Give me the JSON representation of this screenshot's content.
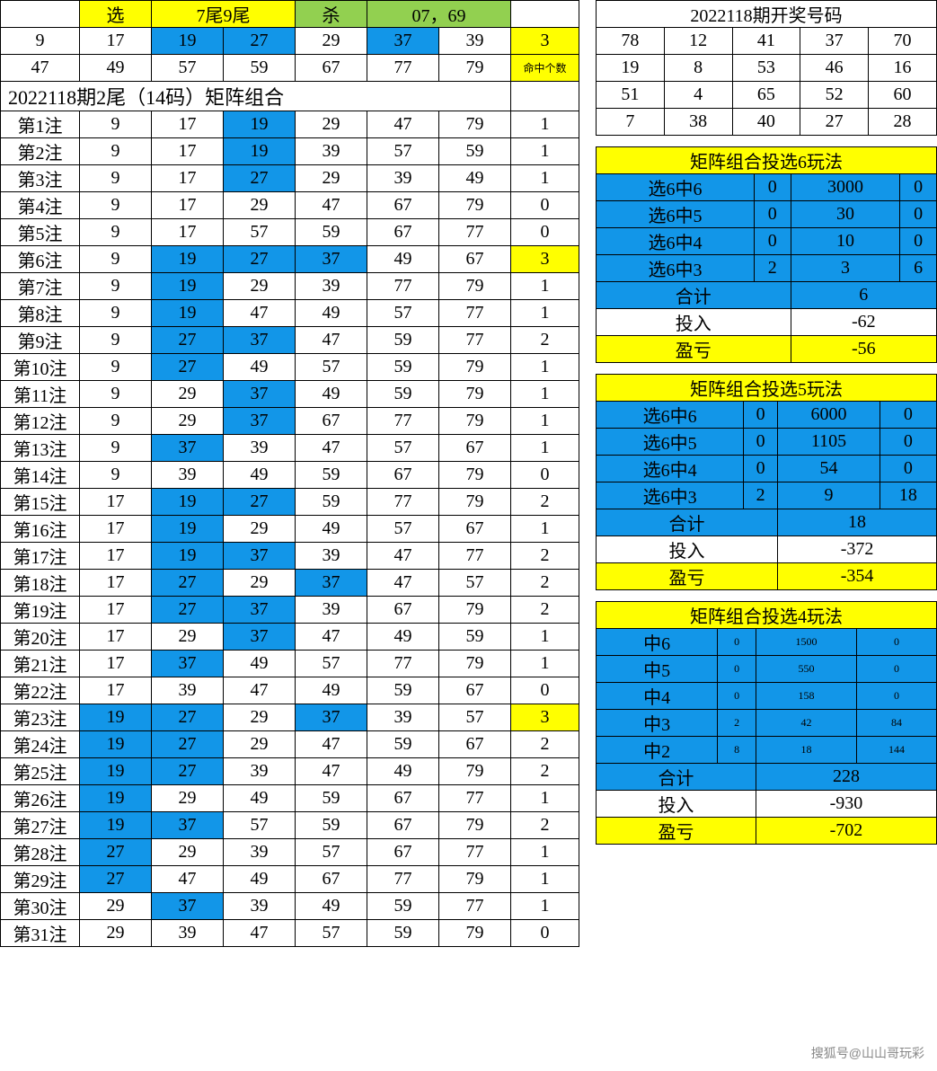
{
  "colors": {
    "yellow": "#ffff00",
    "blue": "#1296e8",
    "green": "#92d050",
    "white": "#ffffff",
    "border": "#000000"
  },
  "header": {
    "xuan": "选",
    "tails": "7尾9尾",
    "sha": "杀",
    "kill_nums": "07，69"
  },
  "top_numbers": {
    "row1": [
      "9",
      "17",
      "19",
      "27",
      "29",
      "37",
      "39"
    ],
    "row1_hl": [
      false,
      false,
      true,
      true,
      false,
      true,
      false
    ],
    "row2": [
      "47",
      "49",
      "57",
      "59",
      "67",
      "77",
      "79"
    ],
    "hit_count": "3",
    "hit_label": "命中个数"
  },
  "matrix_title": "2022118期2尾（14码）矩阵组合",
  "bets": [
    {
      "label": "第1注",
      "nums": [
        "9",
        "17",
        "19",
        "29",
        "47",
        "79"
      ],
      "hl": [
        0,
        0,
        1,
        0,
        0,
        0
      ],
      "cnt": "1",
      "ch": 0
    },
    {
      "label": "第2注",
      "nums": [
        "9",
        "17",
        "19",
        "39",
        "57",
        "59"
      ],
      "hl": [
        0,
        0,
        1,
        0,
        0,
        0
      ],
      "cnt": "1",
      "ch": 0
    },
    {
      "label": "第3注",
      "nums": [
        "9",
        "17",
        "27",
        "29",
        "39",
        "49"
      ],
      "hl": [
        0,
        0,
        1,
        0,
        0,
        0
      ],
      "cnt": "1",
      "ch": 0
    },
    {
      "label": "第4注",
      "nums": [
        "9",
        "17",
        "29",
        "47",
        "67",
        "79"
      ],
      "hl": [
        0,
        0,
        0,
        0,
        0,
        0
      ],
      "cnt": "0",
      "ch": 0
    },
    {
      "label": "第5注",
      "nums": [
        "9",
        "17",
        "57",
        "59",
        "67",
        "77"
      ],
      "hl": [
        0,
        0,
        0,
        0,
        0,
        0
      ],
      "cnt": "0",
      "ch": 0
    },
    {
      "label": "第6注",
      "nums": [
        "9",
        "19",
        "27",
        "37",
        "49",
        "67"
      ],
      "hl": [
        0,
        1,
        1,
        1,
        0,
        0
      ],
      "cnt": "3",
      "ch": 1
    },
    {
      "label": "第7注",
      "nums": [
        "9",
        "19",
        "29",
        "39",
        "77",
        "79"
      ],
      "hl": [
        0,
        1,
        0,
        0,
        0,
        0
      ],
      "cnt": "1",
      "ch": 0
    },
    {
      "label": "第8注",
      "nums": [
        "9",
        "19",
        "47",
        "49",
        "57",
        "77"
      ],
      "hl": [
        0,
        1,
        0,
        0,
        0,
        0
      ],
      "cnt": "1",
      "ch": 0
    },
    {
      "label": "第9注",
      "nums": [
        "9",
        "27",
        "37",
        "47",
        "59",
        "77"
      ],
      "hl": [
        0,
        1,
        1,
        0,
        0,
        0
      ],
      "cnt": "2",
      "ch": 0
    },
    {
      "label": "第10注",
      "nums": [
        "9",
        "27",
        "49",
        "57",
        "59",
        "79"
      ],
      "hl": [
        0,
        1,
        0,
        0,
        0,
        0
      ],
      "cnt": "1",
      "ch": 0
    },
    {
      "label": "第11注",
      "nums": [
        "9",
        "29",
        "37",
        "49",
        "59",
        "79"
      ],
      "hl": [
        0,
        0,
        1,
        0,
        0,
        0
      ],
      "cnt": "1",
      "ch": 0
    },
    {
      "label": "第12注",
      "nums": [
        "9",
        "29",
        "37",
        "67",
        "77",
        "79"
      ],
      "hl": [
        0,
        0,
        1,
        0,
        0,
        0
      ],
      "cnt": "1",
      "ch": 0
    },
    {
      "label": "第13注",
      "nums": [
        "9",
        "37",
        "39",
        "47",
        "57",
        "67"
      ],
      "hl": [
        0,
        1,
        0,
        0,
        0,
        0
      ],
      "cnt": "1",
      "ch": 0
    },
    {
      "label": "第14注",
      "nums": [
        "9",
        "39",
        "49",
        "59",
        "67",
        "79"
      ],
      "hl": [
        0,
        0,
        0,
        0,
        0,
        0
      ],
      "cnt": "0",
      "ch": 0
    },
    {
      "label": "第15注",
      "nums": [
        "17",
        "19",
        "27",
        "59",
        "77",
        "79"
      ],
      "hl": [
        0,
        1,
        1,
        0,
        0,
        0
      ],
      "cnt": "2",
      "ch": 0
    },
    {
      "label": "第16注",
      "nums": [
        "17",
        "19",
        "29",
        "49",
        "57",
        "67"
      ],
      "hl": [
        0,
        1,
        0,
        0,
        0,
        0
      ],
      "cnt": "1",
      "ch": 0
    },
    {
      "label": "第17注",
      "nums": [
        "17",
        "19",
        "37",
        "39",
        "47",
        "77"
      ],
      "hl": [
        0,
        1,
        1,
        0,
        0,
        0
      ],
      "cnt": "2",
      "ch": 0
    },
    {
      "label": "第18注",
      "nums": [
        "17",
        "27",
        "29",
        "37",
        "47",
        "57"
      ],
      "hl": [
        0,
        1,
        0,
        1,
        0,
        0
      ],
      "cnt": "2",
      "ch": 0
    },
    {
      "label": "第19注",
      "nums": [
        "17",
        "27",
        "37",
        "39",
        "67",
        "79"
      ],
      "hl": [
        0,
        1,
        1,
        0,
        0,
        0
      ],
      "cnt": "2",
      "ch": 0
    },
    {
      "label": "第20注",
      "nums": [
        "17",
        "29",
        "37",
        "47",
        "49",
        "59"
      ],
      "hl": [
        0,
        0,
        1,
        0,
        0,
        0
      ],
      "cnt": "1",
      "ch": 0
    },
    {
      "label": "第21注",
      "nums": [
        "17",
        "37",
        "49",
        "57",
        "77",
        "79"
      ],
      "hl": [
        0,
        1,
        0,
        0,
        0,
        0
      ],
      "cnt": "1",
      "ch": 0
    },
    {
      "label": "第22注",
      "nums": [
        "17",
        "39",
        "47",
        "49",
        "59",
        "67"
      ],
      "hl": [
        0,
        0,
        0,
        0,
        0,
        0
      ],
      "cnt": "0",
      "ch": 0
    },
    {
      "label": "第23注",
      "nums": [
        "19",
        "27",
        "29",
        "37",
        "39",
        "57"
      ],
      "hl": [
        1,
        1,
        0,
        1,
        0,
        0
      ],
      "cnt": "3",
      "ch": 1
    },
    {
      "label": "第24注",
      "nums": [
        "19",
        "27",
        "29",
        "47",
        "59",
        "67"
      ],
      "hl": [
        1,
        1,
        0,
        0,
        0,
        0
      ],
      "cnt": "2",
      "ch": 0
    },
    {
      "label": "第25注",
      "nums": [
        "19",
        "27",
        "39",
        "47",
        "49",
        "79"
      ],
      "hl": [
        1,
        1,
        0,
        0,
        0,
        0
      ],
      "cnt": "2",
      "ch": 0
    },
    {
      "label": "第26注",
      "nums": [
        "19",
        "29",
        "49",
        "59",
        "67",
        "77"
      ],
      "hl": [
        1,
        0,
        0,
        0,
        0,
        0
      ],
      "cnt": "1",
      "ch": 0
    },
    {
      "label": "第27注",
      "nums": [
        "19",
        "37",
        "57",
        "59",
        "67",
        "79"
      ],
      "hl": [
        1,
        1,
        0,
        0,
        0,
        0
      ],
      "cnt": "2",
      "ch": 0
    },
    {
      "label": "第28注",
      "nums": [
        "27",
        "29",
        "39",
        "57",
        "67",
        "77"
      ],
      "hl": [
        1,
        0,
        0,
        0,
        0,
        0
      ],
      "cnt": "1",
      "ch": 0
    },
    {
      "label": "第29注",
      "nums": [
        "27",
        "47",
        "49",
        "67",
        "77",
        "79"
      ],
      "hl": [
        1,
        0,
        0,
        0,
        0,
        0
      ],
      "cnt": "1",
      "ch": 0
    },
    {
      "label": "第30注",
      "nums": [
        "29",
        "37",
        "39",
        "49",
        "59",
        "77"
      ],
      "hl": [
        0,
        1,
        0,
        0,
        0,
        0
      ],
      "cnt": "1",
      "ch": 0
    },
    {
      "label": "第31注",
      "nums": [
        "29",
        "39",
        "47",
        "57",
        "59",
        "79"
      ],
      "hl": [
        0,
        0,
        0,
        0,
        0,
        0
      ],
      "cnt": "0",
      "ch": 0
    }
  ],
  "draw": {
    "title": "2022118期开奖号码",
    "rows": [
      [
        "78",
        "12",
        "41",
        "37",
        "70"
      ],
      [
        "19",
        "8",
        "53",
        "46",
        "16"
      ],
      [
        "51",
        "4",
        "65",
        "52",
        "60"
      ],
      [
        "7",
        "38",
        "40",
        "27",
        "28"
      ]
    ]
  },
  "play6": {
    "title": "矩阵组合投选6玩法",
    "rows": [
      [
        "选6中6",
        "0",
        "3000",
        "0"
      ],
      [
        "选6中5",
        "0",
        "30",
        "0"
      ],
      [
        "选6中4",
        "0",
        "10",
        "0"
      ],
      [
        "选6中3",
        "2",
        "3",
        "6"
      ]
    ],
    "total_label": "合计",
    "total": "6",
    "invest_label": "投入",
    "invest": "-62",
    "profit_label": "盈亏",
    "profit": "-56"
  },
  "play5": {
    "title": "矩阵组合投选5玩法",
    "rows": [
      [
        "选6中6",
        "0",
        "6000",
        "0"
      ],
      [
        "选6中5",
        "0",
        "1105",
        "0"
      ],
      [
        "选6中4",
        "0",
        "54",
        "0"
      ],
      [
        "选6中3",
        "2",
        "9",
        "18"
      ]
    ],
    "total_label": "合计",
    "total": "18",
    "invest_label": "投入",
    "invest": "-372",
    "profit_label": "盈亏",
    "profit": "-354"
  },
  "play4": {
    "title": "矩阵组合投选4玩法",
    "rows": [
      [
        "中6",
        "0",
        "1500",
        "0"
      ],
      [
        "中5",
        "0",
        "550",
        "0"
      ],
      [
        "中4",
        "0",
        "158",
        "0"
      ],
      [
        "中3",
        "2",
        "42",
        "84"
      ],
      [
        "中2",
        "8",
        "18",
        "144"
      ]
    ],
    "total_label": "合计",
    "total": "228",
    "invest_label": "投入",
    "invest": "-930",
    "profit_label": "盈亏",
    "profit": "-702"
  },
  "watermark": "搜狐号@山山哥玩彩"
}
